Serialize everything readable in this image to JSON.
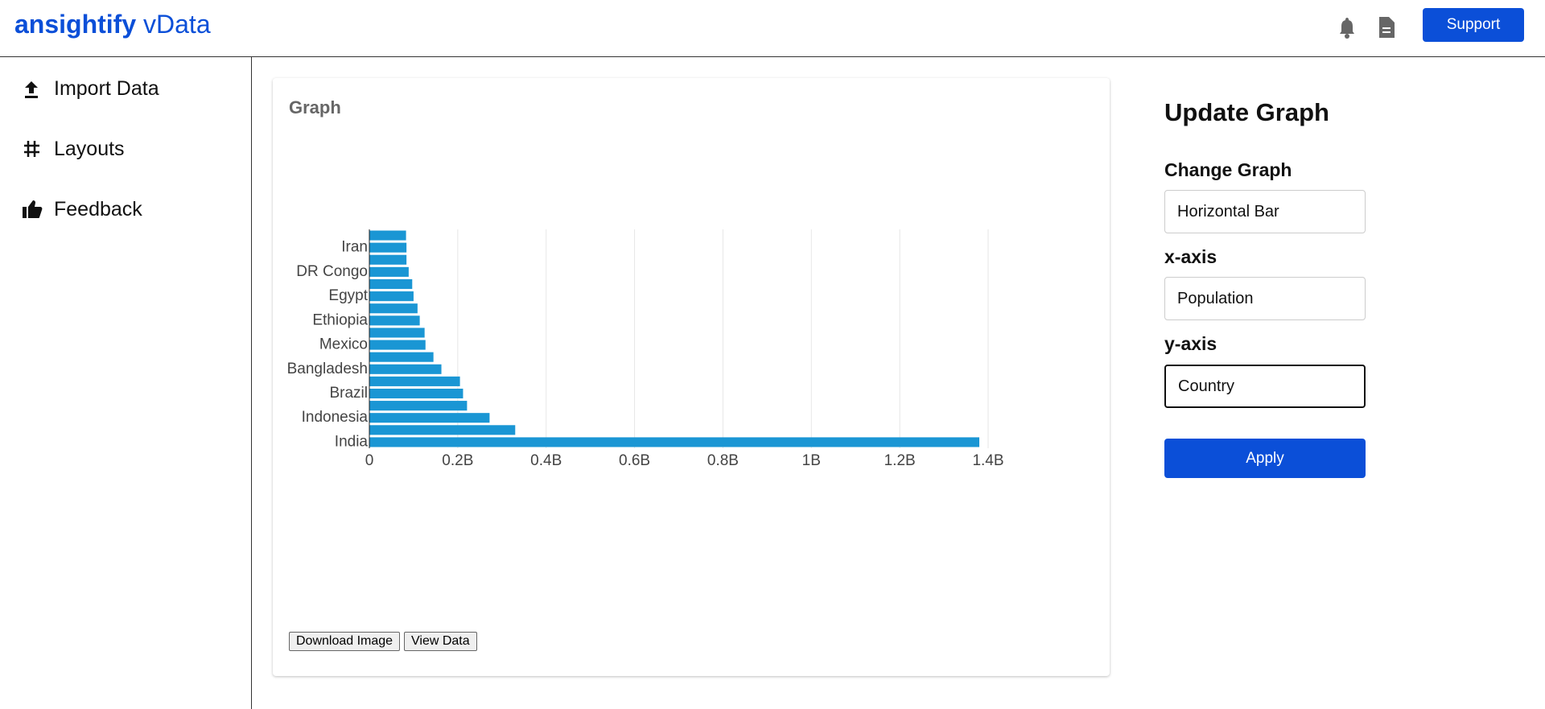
{
  "header": {
    "logo": "ansightify",
    "logo_suffix": "vData",
    "support": "Support"
  },
  "sidebar": {
    "items": [
      "Import Data",
      "Layouts",
      "Feedback"
    ]
  },
  "card": {
    "title": "Graph",
    "buttons": [
      "Download Image",
      "View Data"
    ]
  },
  "chart_data": {
    "type": "barh",
    "categories": [
      "India",
      null,
      "Indonesia",
      null,
      "Brazil",
      null,
      "Bangladesh",
      null,
      "Mexico",
      null,
      "Ethiopia",
      null,
      "Egypt",
      null,
      "DR Congo",
      null,
      "Iran",
      null
    ],
    "values": [
      1380000000,
      330000000,
      272000000,
      221000000,
      212000000,
      205000000,
      163000000,
      145000000,
      127000000,
      125000000,
      114000000,
      109000000,
      100000000,
      97000000,
      89000000,
      84000000,
      84000000,
      83000000
    ],
    "color": "#1a96d4",
    "xlim": [
      0,
      1400000000
    ],
    "xticks": [
      0,
      {
        "value": 200000000,
        "label": "0.2B"
      },
      {
        "value": 400000000,
        "label": "0.4B"
      },
      {
        "value": 600000000,
        "label": "0.6B"
      },
      {
        "value": 800000000,
        "label": "0.8B"
      },
      {
        "value": 1000000000,
        "label": "1B"
      },
      {
        "value": 1200000000,
        "label": "1.2B"
      },
      {
        "value": 1400000000,
        "label": "1.4B"
      }
    ],
    "grid": true
  },
  "panel": {
    "title": "Update Graph",
    "fields": [
      {
        "label": "Change Graph",
        "value": "Horizontal Bar"
      },
      {
        "label": "x-axis",
        "value": "Population"
      },
      {
        "label": "y-axis",
        "value": "Country"
      }
    ],
    "apply": "Apply"
  }
}
